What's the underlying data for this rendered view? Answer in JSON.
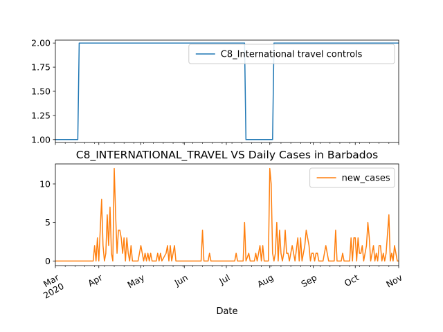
{
  "chart_data": [
    {
      "type": "line",
      "title": "",
      "xlabel": "",
      "ylabel": "",
      "x_start": "2020-03-01",
      "x_end": "2020-11-01",
      "ylim": [
        0.97,
        2.03
      ],
      "yticks": [
        "1.00",
        "1.25",
        "1.50",
        "1.75",
        "2.00"
      ],
      "xtick_labels": [],
      "legend": {
        "position": "upper right"
      },
      "series": [
        {
          "name": "C8_International travel controls",
          "color": "#1f77b4",
          "points": [
            [
              "2020-03-01",
              1
            ],
            [
              "2020-03-17",
              1
            ],
            [
              "2020-03-18",
              2
            ],
            [
              "2020-07-14",
              2
            ],
            [
              "2020-07-15",
              1
            ],
            [
              "2020-08-03",
              1
            ],
            [
              "2020-08-04",
              2
            ],
            [
              "2020-11-01",
              2
            ]
          ]
        }
      ]
    },
    {
      "type": "line",
      "title": "C8_INTERNATIONAL_TRAVEL VS Daily Cases in Barbados",
      "xlabel": "Date",
      "ylabel": "",
      "x_start": "2020-03-01",
      "x_end": "2020-11-01",
      "ylim": [
        -0.6,
        12.6
      ],
      "yticks": [
        "0",
        "5",
        "10"
      ],
      "xtick_labels": [
        "Mar\n2020",
        "Apr",
        "May",
        "Jun",
        "Jul",
        "Aug",
        "Sep",
        "Oct",
        "Nov"
      ],
      "legend": {
        "position": "upper right"
      },
      "series": [
        {
          "name": "new_cases",
          "color": "#ff7f0e",
          "points": [
            [
              "2020-03-01",
              0
            ],
            [
              "2020-03-28",
              0
            ],
            [
              "2020-03-29",
              2
            ],
            [
              "2020-03-30",
              0
            ],
            [
              "2020-03-31",
              3
            ],
            [
              "2020-04-01",
              0
            ],
            [
              "2020-04-03",
              8
            ],
            [
              "2020-04-04",
              2
            ],
            [
              "2020-04-05",
              0
            ],
            [
              "2020-04-06",
              1
            ],
            [
              "2020-04-07",
              6
            ],
            [
              "2020-04-08",
              2
            ],
            [
              "2020-04-09",
              7
            ],
            [
              "2020-04-10",
              1
            ],
            [
              "2020-04-11",
              0
            ],
            [
              "2020-04-12",
              12
            ],
            [
              "2020-04-13",
              6
            ],
            [
              "2020-04-14",
              1
            ],
            [
              "2020-04-15",
              4
            ],
            [
              "2020-04-16",
              4
            ],
            [
              "2020-04-17",
              3
            ],
            [
              "2020-04-18",
              1
            ],
            [
              "2020-04-19",
              3
            ],
            [
              "2020-04-20",
              0
            ],
            [
              "2020-04-21",
              3
            ],
            [
              "2020-04-22",
              1
            ],
            [
              "2020-04-23",
              0
            ],
            [
              "2020-04-24",
              2
            ],
            [
              "2020-04-25",
              0
            ],
            [
              "2020-04-29",
              0
            ],
            [
              "2020-04-30",
              1
            ],
            [
              "2020-05-01",
              2
            ],
            [
              "2020-05-02",
              1
            ],
            [
              "2020-05-03",
              0
            ],
            [
              "2020-05-04",
              1
            ],
            [
              "2020-05-05",
              0
            ],
            [
              "2020-05-06",
              1
            ],
            [
              "2020-05-07",
              0
            ],
            [
              "2020-05-08",
              1
            ],
            [
              "2020-05-09",
              0
            ],
            [
              "2020-05-12",
              0
            ],
            [
              "2020-05-13",
              1
            ],
            [
              "2020-05-14",
              0
            ],
            [
              "2020-05-15",
              1
            ],
            [
              "2020-05-16",
              0
            ],
            [
              "2020-05-19",
              1
            ],
            [
              "2020-05-20",
              2
            ],
            [
              "2020-05-21",
              0
            ],
            [
              "2020-05-22",
              2
            ],
            [
              "2020-05-23",
              0
            ],
            [
              "2020-05-25",
              2
            ],
            [
              "2020-05-26",
              0
            ],
            [
              "2020-06-13",
              0
            ],
            [
              "2020-06-14",
              4
            ],
            [
              "2020-06-15",
              0
            ],
            [
              "2020-06-18",
              0
            ],
            [
              "2020-06-19",
              1
            ],
            [
              "2020-06-20",
              0
            ],
            [
              "2020-07-07",
              0
            ],
            [
              "2020-07-08",
              1
            ],
            [
              "2020-07-09",
              0
            ],
            [
              "2020-07-13",
              0
            ],
            [
              "2020-07-14",
              5
            ],
            [
              "2020-07-15",
              0
            ],
            [
              "2020-07-17",
              1
            ],
            [
              "2020-07-18",
              0
            ],
            [
              "2020-07-21",
              0
            ],
            [
              "2020-07-22",
              1
            ],
            [
              "2020-07-23",
              0
            ],
            [
              "2020-07-25",
              2
            ],
            [
              "2020-07-26",
              0
            ],
            [
              "2020-07-27",
              2
            ],
            [
              "2020-07-28",
              0
            ],
            [
              "2020-07-31",
              0
            ],
            [
              "2020-08-01",
              12
            ],
            [
              "2020-08-02",
              10
            ],
            [
              "2020-08-03",
              1
            ],
            [
              "2020-08-04",
              0
            ],
            [
              "2020-08-05",
              1
            ],
            [
              "2020-08-06",
              5
            ],
            [
              "2020-08-07",
              0
            ],
            [
              "2020-08-08",
              4
            ],
            [
              "2020-08-09",
              1
            ],
            [
              "2020-08-10",
              0
            ],
            [
              "2020-08-11",
              1
            ],
            [
              "2020-08-12",
              4
            ],
            [
              "2020-08-13",
              1
            ],
            [
              "2020-08-14",
              1
            ],
            [
              "2020-08-15",
              0
            ],
            [
              "2020-08-17",
              2
            ],
            [
              "2020-08-18",
              1
            ],
            [
              "2020-08-19",
              0
            ],
            [
              "2020-08-21",
              3
            ],
            [
              "2020-08-22",
              0
            ],
            [
              "2020-08-23",
              3
            ],
            [
              "2020-08-24",
              0
            ],
            [
              "2020-08-26",
              2
            ],
            [
              "2020-08-27",
              4
            ],
            [
              "2020-08-28",
              3
            ],
            [
              "2020-08-29",
              2
            ],
            [
              "2020-08-30",
              0
            ],
            [
              "2020-08-31",
              1
            ],
            [
              "2020-09-01",
              1
            ],
            [
              "2020-09-02",
              0
            ],
            [
              "2020-09-03",
              1
            ],
            [
              "2020-09-04",
              1
            ],
            [
              "2020-09-05",
              0
            ],
            [
              "2020-09-08",
              0
            ],
            [
              "2020-09-09",
              1
            ],
            [
              "2020-09-10",
              2
            ],
            [
              "2020-09-11",
              1
            ],
            [
              "2020-09-12",
              0
            ],
            [
              "2020-09-16",
              0
            ],
            [
              "2020-09-17",
              4
            ],
            [
              "2020-09-18",
              0
            ],
            [
              "2020-09-21",
              0
            ],
            [
              "2020-09-22",
              1
            ],
            [
              "2020-09-23",
              0
            ],
            [
              "2020-09-27",
              0
            ],
            [
              "2020-09-28",
              3
            ],
            [
              "2020-09-29",
              0
            ],
            [
              "2020-09-30",
              3
            ],
            [
              "2020-10-01",
              3
            ],
            [
              "2020-10-02",
              0
            ],
            [
              "2020-10-03",
              3
            ],
            [
              "2020-10-04",
              1
            ],
            [
              "2020-10-05",
              1
            ],
            [
              "2020-10-06",
              2
            ],
            [
              "2020-10-07",
              0
            ],
            [
              "2020-10-08",
              1
            ],
            [
              "2020-10-09",
              2
            ],
            [
              "2020-10-10",
              5
            ],
            [
              "2020-10-11",
              3
            ],
            [
              "2020-10-12",
              0
            ],
            [
              "2020-10-14",
              2
            ],
            [
              "2020-10-15",
              0
            ],
            [
              "2020-10-16",
              1
            ],
            [
              "2020-10-17",
              0
            ],
            [
              "2020-10-18",
              2
            ],
            [
              "2020-10-19",
              2
            ],
            [
              "2020-10-20",
              0
            ],
            [
              "2020-10-21",
              1
            ],
            [
              "2020-10-22",
              0
            ],
            [
              "2020-10-23",
              1
            ],
            [
              "2020-10-25",
              6
            ],
            [
              "2020-10-26",
              0
            ],
            [
              "2020-10-27",
              1
            ],
            [
              "2020-10-28",
              0
            ],
            [
              "2020-10-29",
              2
            ],
            [
              "2020-10-30",
              1
            ],
            [
              "2020-10-31",
              0
            ],
            [
              "2020-11-01",
              0
            ]
          ]
        }
      ]
    }
  ]
}
